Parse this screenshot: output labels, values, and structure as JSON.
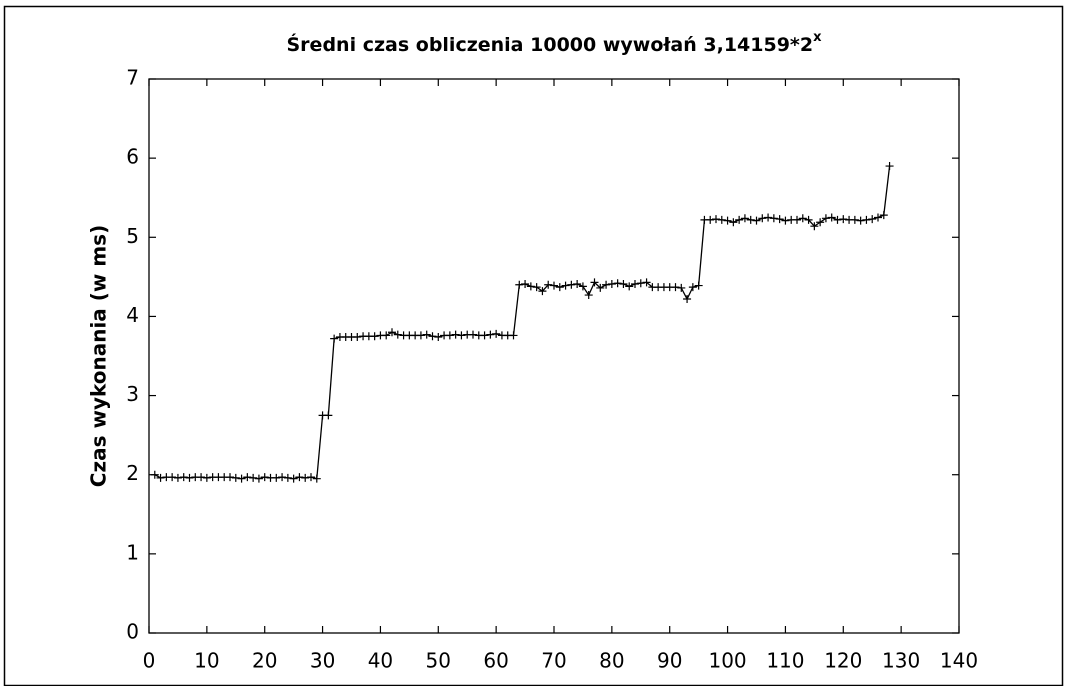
{
  "chart_data": {
    "type": "line",
    "title": "Średni czas obliczenia 10000 wywołań 3,14159*2",
    "title_superscript": "x",
    "ylabel": "Czas wykonania (w ms)",
    "xlim": [
      0,
      140
    ],
    "xticks": [
      0,
      10,
      20,
      30,
      40,
      50,
      60,
      70,
      80,
      90,
      100,
      110,
      120,
      130,
      140
    ],
    "ylim": [
      0,
      7
    ],
    "yticks": [
      0,
      1,
      2,
      3,
      4,
      5,
      6,
      7
    ],
    "grid": false,
    "x": [
      1,
      2,
      3,
      4,
      5,
      6,
      7,
      8,
      9,
      10,
      11,
      12,
      13,
      14,
      15,
      16,
      17,
      18,
      19,
      20,
      21,
      22,
      23,
      24,
      25,
      26,
      27,
      28,
      29,
      30,
      31,
      32,
      33,
      34,
      35,
      36,
      37,
      38,
      39,
      40,
      41,
      42,
      43,
      44,
      45,
      46,
      47,
      48,
      49,
      50,
      51,
      52,
      53,
      54,
      55,
      56,
      57,
      58,
      59,
      60,
      61,
      62,
      63,
      64,
      65,
      66,
      67,
      68,
      69,
      70,
      71,
      72,
      73,
      74,
      75,
      76,
      77,
      78,
      79,
      80,
      81,
      82,
      83,
      84,
      85,
      86,
      87,
      88,
      89,
      90,
      91,
      92,
      93,
      94,
      95,
      96,
      97,
      98,
      99,
      100,
      101,
      102,
      103,
      104,
      105,
      106,
      107,
      108,
      109,
      110,
      111,
      112,
      113,
      114,
      115,
      116,
      117,
      118,
      119,
      120,
      121,
      122,
      123,
      124,
      125,
      126,
      127,
      128
    ],
    "series": [
      {
        "color": "#000000",
        "marker": "+",
        "values": [
          2.0,
          1.96,
          1.97,
          1.97,
          1.96,
          1.97,
          1.96,
          1.97,
          1.97,
          1.96,
          1.97,
          1.97,
          1.97,
          1.97,
          1.96,
          1.95,
          1.97,
          1.96,
          1.95,
          1.97,
          1.96,
          1.96,
          1.97,
          1.96,
          1.95,
          1.97,
          1.96,
          1.97,
          1.95,
          2.75,
          2.75,
          3.72,
          3.74,
          3.74,
          3.74,
          3.74,
          3.75,
          3.75,
          3.75,
          3.76,
          3.76,
          3.8,
          3.77,
          3.76,
          3.76,
          3.76,
          3.76,
          3.77,
          3.75,
          3.74,
          3.76,
          3.76,
          3.77,
          3.76,
          3.77,
          3.77,
          3.76,
          3.76,
          3.77,
          3.78,
          3.76,
          3.76,
          3.76,
          4.4,
          4.41,
          4.38,
          4.37,
          4.32,
          4.4,
          4.39,
          4.37,
          4.39,
          4.4,
          4.41,
          4.38,
          4.27,
          4.43,
          4.36,
          4.4,
          4.41,
          4.42,
          4.41,
          4.38,
          4.41,
          4.42,
          4.43,
          4.37,
          4.37,
          4.37,
          4.37,
          4.37,
          4.36,
          4.22,
          4.37,
          4.39,
          5.22,
          5.22,
          5.23,
          5.22,
          5.21,
          5.19,
          5.22,
          5.24,
          5.22,
          5.21,
          5.24,
          5.25,
          5.24,
          5.23,
          5.21,
          5.22,
          5.22,
          5.24,
          5.22,
          5.14,
          5.19,
          5.24,
          5.25,
          5.22,
          5.23,
          5.22,
          5.22,
          5.21,
          5.22,
          5.23,
          5.25,
          5.28,
          5.9
        ]
      }
    ]
  }
}
